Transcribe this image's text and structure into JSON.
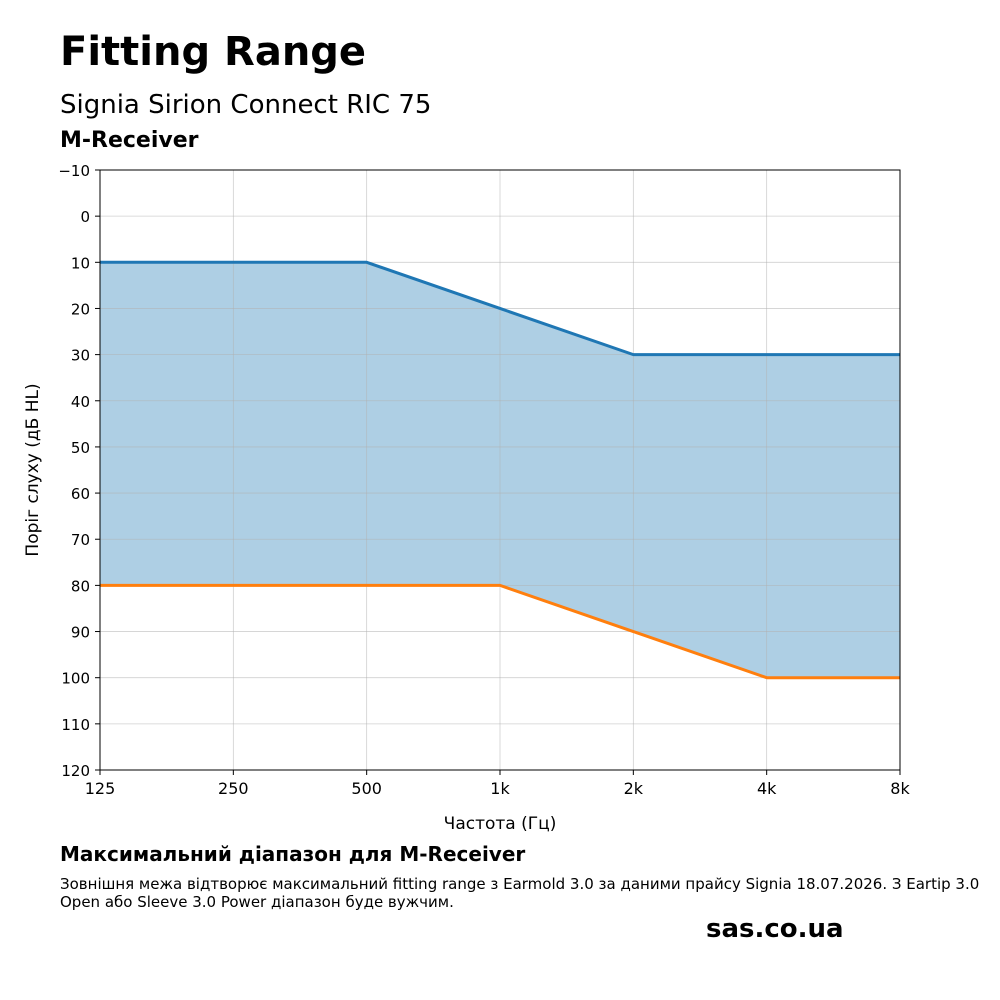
{
  "header": {
    "title": "Fitting Range",
    "subtitle": "Signia Sirion Connect RIC 75",
    "receiver": "M-Receiver"
  },
  "chart_data": {
    "type": "area",
    "xlabel": "Частота (Гц)",
    "ylabel": "Поріг слуху (дБ HL)",
    "x_scale": "log2",
    "y_inverted": true,
    "categories": [
      "125",
      "250",
      "500",
      "1k",
      "2k",
      "4k",
      "8k"
    ],
    "x": [
      125,
      250,
      500,
      1000,
      2000,
      4000,
      8000
    ],
    "ylim": [
      -10,
      120
    ],
    "yticks": [
      -10,
      0,
      10,
      20,
      30,
      40,
      50,
      60,
      70,
      80,
      90,
      100,
      110,
      120
    ],
    "ytick_labels": [
      "−10",
      "0",
      "10",
      "20",
      "30",
      "40",
      "50",
      "60",
      "70",
      "80",
      "90",
      "100",
      "110",
      "120"
    ],
    "grid": true,
    "series": [
      {
        "values": [
          10,
          10,
          10,
          20,
          30,
          30,
          30
        ],
        "color": "#1f77b4"
      },
      {
        "values": [
          80,
          80,
          80,
          80,
          90,
          100,
          100
        ],
        "color": "#ff7f0e"
      }
    ],
    "fill_color": "#aecfe4"
  },
  "footer": {
    "heading": "Максимальний діапазон для M-Receiver",
    "text": "Зовнішня межа відтворює максимальний fitting range з Earmold 3.0 за даними прайсу Signia 18.07.2026. З Eartip 3.0 Open або Sleeve 3.0 Power діапазон буде вужчим.",
    "brand": "sas.co.ua"
  }
}
